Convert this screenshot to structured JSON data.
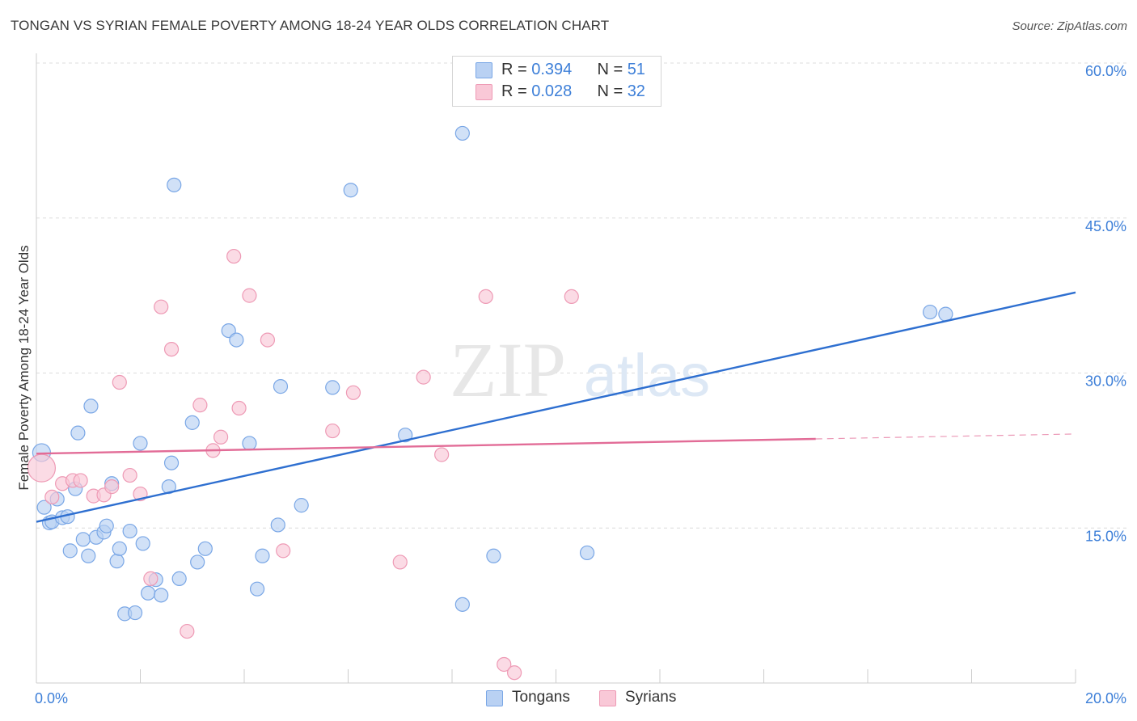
{
  "title": "TONGAN VS SYRIAN FEMALE POVERTY AMONG 18-24 YEAR OLDS CORRELATION CHART",
  "source": "Source: ZipAtlas.com",
  "watermark": {
    "zip": "ZIP",
    "atlas": "atlas"
  },
  "legend": {
    "rows": [
      {
        "r_label": "R = ",
        "r_value": "0.394",
        "n_label": "N = ",
        "n_value": "51",
        "fill": "#b9d1f3",
        "stroke": "#7aa7e6"
      },
      {
        "r_label": "R = ",
        "r_value": "0.028",
        "n_label": "N = ",
        "n_value": "32",
        "fill": "#f9c8d7",
        "stroke": "#ee9ab5"
      }
    ]
  },
  "bottom_legend": [
    {
      "label": "Tongans",
      "fill": "#b9d1f3",
      "stroke": "#7aa7e6"
    },
    {
      "label": "Syrians",
      "fill": "#f9c8d7",
      "stroke": "#ee9ab5"
    }
  ],
  "chart_data": {
    "type": "scatter",
    "title": "TONGAN VS SYRIAN FEMALE POVERTY AMONG 18-24 YEAR OLDS CORRELATION CHART",
    "xlabel": "",
    "ylabel": "Female Poverty Among 18-24 Year Olds",
    "xlim": [
      0,
      20
    ],
    "ylim": [
      0,
      60
    ],
    "x_tick_labels": [
      "0.0%",
      "20.0%"
    ],
    "y_ticks": [
      15,
      30,
      45,
      60
    ],
    "y_tick_labels": [
      "15.0%",
      "30.0%",
      "45.0%",
      "60.0%"
    ],
    "grid": true,
    "legend_position": "top-center",
    "series": [
      {
        "name": "Tongans",
        "color": "#7aa7e6",
        "fill": "#b9d1f3",
        "trend_color": "#2e6fd0",
        "trend": {
          "x0": 0,
          "y0": 15.6,
          "x1": 20,
          "y1": 37.8,
          "dashed_from": null
        },
        "points": [
          [
            0.1,
            22.3
          ],
          [
            0.15,
            17.0
          ],
          [
            0.25,
            15.5
          ],
          [
            0.3,
            15.6
          ],
          [
            0.4,
            17.8
          ],
          [
            0.5,
            16.0
          ],
          [
            0.6,
            16.1
          ],
          [
            0.65,
            12.8
          ],
          [
            0.75,
            18.8
          ],
          [
            0.8,
            24.2
          ],
          [
            0.9,
            13.9
          ],
          [
            1.0,
            12.3
          ],
          [
            1.05,
            26.8
          ],
          [
            1.15,
            14.1
          ],
          [
            1.3,
            14.6
          ],
          [
            1.35,
            15.2
          ],
          [
            1.45,
            19.3
          ],
          [
            1.55,
            11.8
          ],
          [
            1.6,
            13.0
          ],
          [
            1.7,
            6.7
          ],
          [
            1.8,
            14.7
          ],
          [
            1.9,
            6.8
          ],
          [
            2.0,
            23.2
          ],
          [
            2.05,
            13.5
          ],
          [
            2.15,
            8.7
          ],
          [
            2.3,
            10.0
          ],
          [
            2.4,
            8.5
          ],
          [
            2.55,
            19.0
          ],
          [
            2.6,
            21.3
          ],
          [
            2.65,
            48.2
          ],
          [
            2.75,
            10.1
          ],
          [
            3.0,
            25.2
          ],
          [
            3.1,
            11.7
          ],
          [
            3.25,
            13.0
          ],
          [
            3.7,
            34.1
          ],
          [
            3.85,
            33.2
          ],
          [
            4.1,
            23.2
          ],
          [
            4.25,
            9.1
          ],
          [
            4.35,
            12.3
          ],
          [
            4.65,
            15.3
          ],
          [
            4.7,
            28.7
          ],
          [
            5.1,
            17.2
          ],
          [
            5.7,
            28.6
          ],
          [
            6.05,
            47.7
          ],
          [
            7.1,
            24.0
          ],
          [
            8.2,
            53.2
          ],
          [
            8.2,
            7.6
          ],
          [
            8.8,
            12.3
          ],
          [
            10.6,
            12.6
          ],
          [
            17.2,
            35.9
          ],
          [
            17.5,
            35.7
          ]
        ]
      },
      {
        "name": "Syrians",
        "color": "#ee9ab5",
        "fill": "#f9c8d7",
        "trend_color": "#e26c97",
        "trend": {
          "x0": 0,
          "y0": 22.2,
          "x1": 20,
          "y1": 24.1,
          "dashed_from": 15
        },
        "points": [
          [
            0.1,
            20.8
          ],
          [
            0.3,
            18.0
          ],
          [
            0.5,
            19.3
          ],
          [
            0.7,
            19.6
          ],
          [
            0.85,
            19.6
          ],
          [
            1.1,
            18.1
          ],
          [
            1.3,
            18.2
          ],
          [
            1.45,
            19.0
          ],
          [
            1.6,
            29.1
          ],
          [
            1.8,
            20.1
          ],
          [
            2.0,
            18.3
          ],
          [
            2.2,
            10.1
          ],
          [
            2.4,
            36.4
          ],
          [
            2.6,
            32.3
          ],
          [
            2.9,
            5.0
          ],
          [
            3.15,
            26.9
          ],
          [
            3.4,
            22.5
          ],
          [
            3.55,
            23.8
          ],
          [
            3.8,
            41.3
          ],
          [
            3.9,
            26.6
          ],
          [
            4.1,
            37.5
          ],
          [
            4.45,
            33.2
          ],
          [
            4.75,
            12.8
          ],
          [
            5.7,
            24.4
          ],
          [
            6.1,
            28.1
          ],
          [
            7.0,
            11.7
          ],
          [
            7.45,
            29.6
          ],
          [
            7.8,
            22.1
          ],
          [
            8.65,
            37.4
          ],
          [
            9.0,
            1.8
          ],
          [
            9.2,
            1.0
          ],
          [
            10.3,
            37.4
          ]
        ]
      }
    ]
  }
}
